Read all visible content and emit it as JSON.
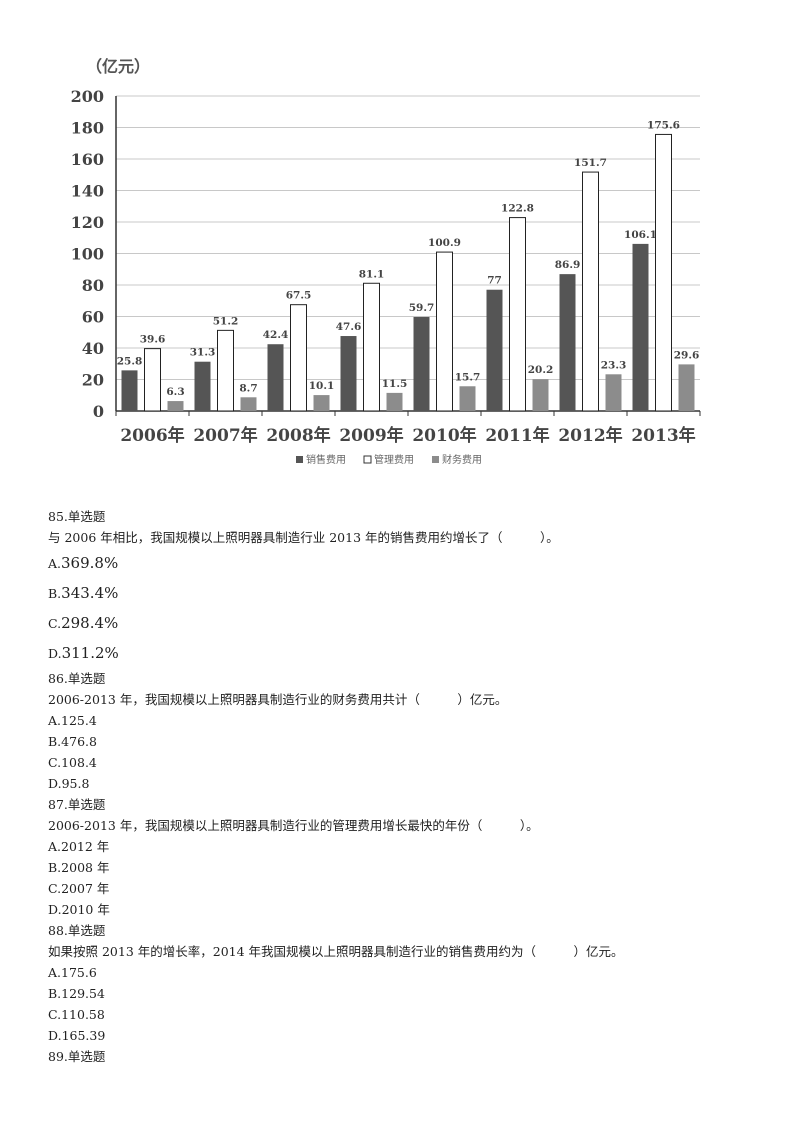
{
  "chart_data": {
    "type": "bar",
    "ylabel": "（亿元）",
    "ylim": [
      0,
      200
    ],
    "yticks": [
      0,
      20,
      40,
      60,
      80,
      100,
      120,
      140,
      160,
      180,
      200
    ],
    "categories": [
      "2006年",
      "2007年",
      "2008年",
      "2009年",
      "2010年",
      "2011年",
      "2012年",
      "2013年"
    ],
    "series": [
      {
        "name": "销售费用",
        "color": "#555555",
        "values": [
          25.8,
          31.3,
          42.4,
          47.6,
          59.7,
          77,
          86.9,
          106.1
        ],
        "labels": [
          "25.8",
          "31.3",
          "42.4",
          "47.6",
          "59.7",
          "77",
          "86.9",
          "106.1"
        ]
      },
      {
        "name": "管理费用",
        "color": "#ffffff",
        "values": [
          39.6,
          51.2,
          67.5,
          81.1,
          100.9,
          122.8,
          151.7,
          175.6
        ],
        "labels": [
          "39.6",
          "51.2",
          "67.5",
          "81.1",
          "100.9",
          "122.8",
          "151.7",
          "175.6"
        ]
      },
      {
        "name": "财务费用",
        "color": "#8c8c8c",
        "values": [
          6.3,
          8.7,
          10.1,
          11.5,
          15.7,
          20.2,
          23.3,
          29.6
        ],
        "labels": [
          "6.3",
          "8.7",
          "10.1",
          "11.5",
          "15.7",
          "20.2",
          "23.3",
          "29.6"
        ]
      }
    ],
    "grid": true,
    "legend": "bottom"
  },
  "questions": [
    {
      "header": "85.单选题",
      "stem": "与 2006 年相比，我国规模以上照明器具制造行业 2013 年的销售费用约增长了（　　　）。",
      "options": [
        {
          "letter": "A.",
          "text": "369.8%"
        },
        {
          "letter": "B.",
          "text": "343.4%"
        },
        {
          "letter": "C.",
          "text": "298.4%"
        },
        {
          "letter": "D.",
          "text": "311.2%"
        }
      ]
    },
    {
      "header": "86.单选题",
      "stem": "2006-2013 年，我国规模以上照明器具制造行业的财务费用共计（　　　）亿元。",
      "options": [
        {
          "letter": "A.",
          "text": "125.4"
        },
        {
          "letter": "B.",
          "text": "476.8"
        },
        {
          "letter": "C.",
          "text": "108.4"
        },
        {
          "letter": "D.",
          "text": "95.8"
        }
      ]
    },
    {
      "header": "87.单选题",
      "stem": "2006-2013 年，我国规模以上照明器具制造行业的管理费用增长最快的年份（　　　）。",
      "options": [
        {
          "letter": "A.",
          "text": "2012 年"
        },
        {
          "letter": "B.",
          "text": "2008 年"
        },
        {
          "letter": "C.",
          "text": "2007 年"
        },
        {
          "letter": "D.",
          "text": "2010 年"
        }
      ]
    },
    {
      "header": "88.单选题",
      "stem": "如果按照 2013 年的增长率，2014 年我国规模以上照明器具制造行业的销售费用约为（　　　）亿元。",
      "options": [
        {
          "letter": "A.",
          "text": "175.6"
        },
        {
          "letter": "B.",
          "text": "129.54"
        },
        {
          "letter": "C.",
          "text": "110.58"
        },
        {
          "letter": "D.",
          "text": "165.39"
        }
      ]
    },
    {
      "header": "89.单选题",
      "stem": "",
      "options": []
    }
  ]
}
